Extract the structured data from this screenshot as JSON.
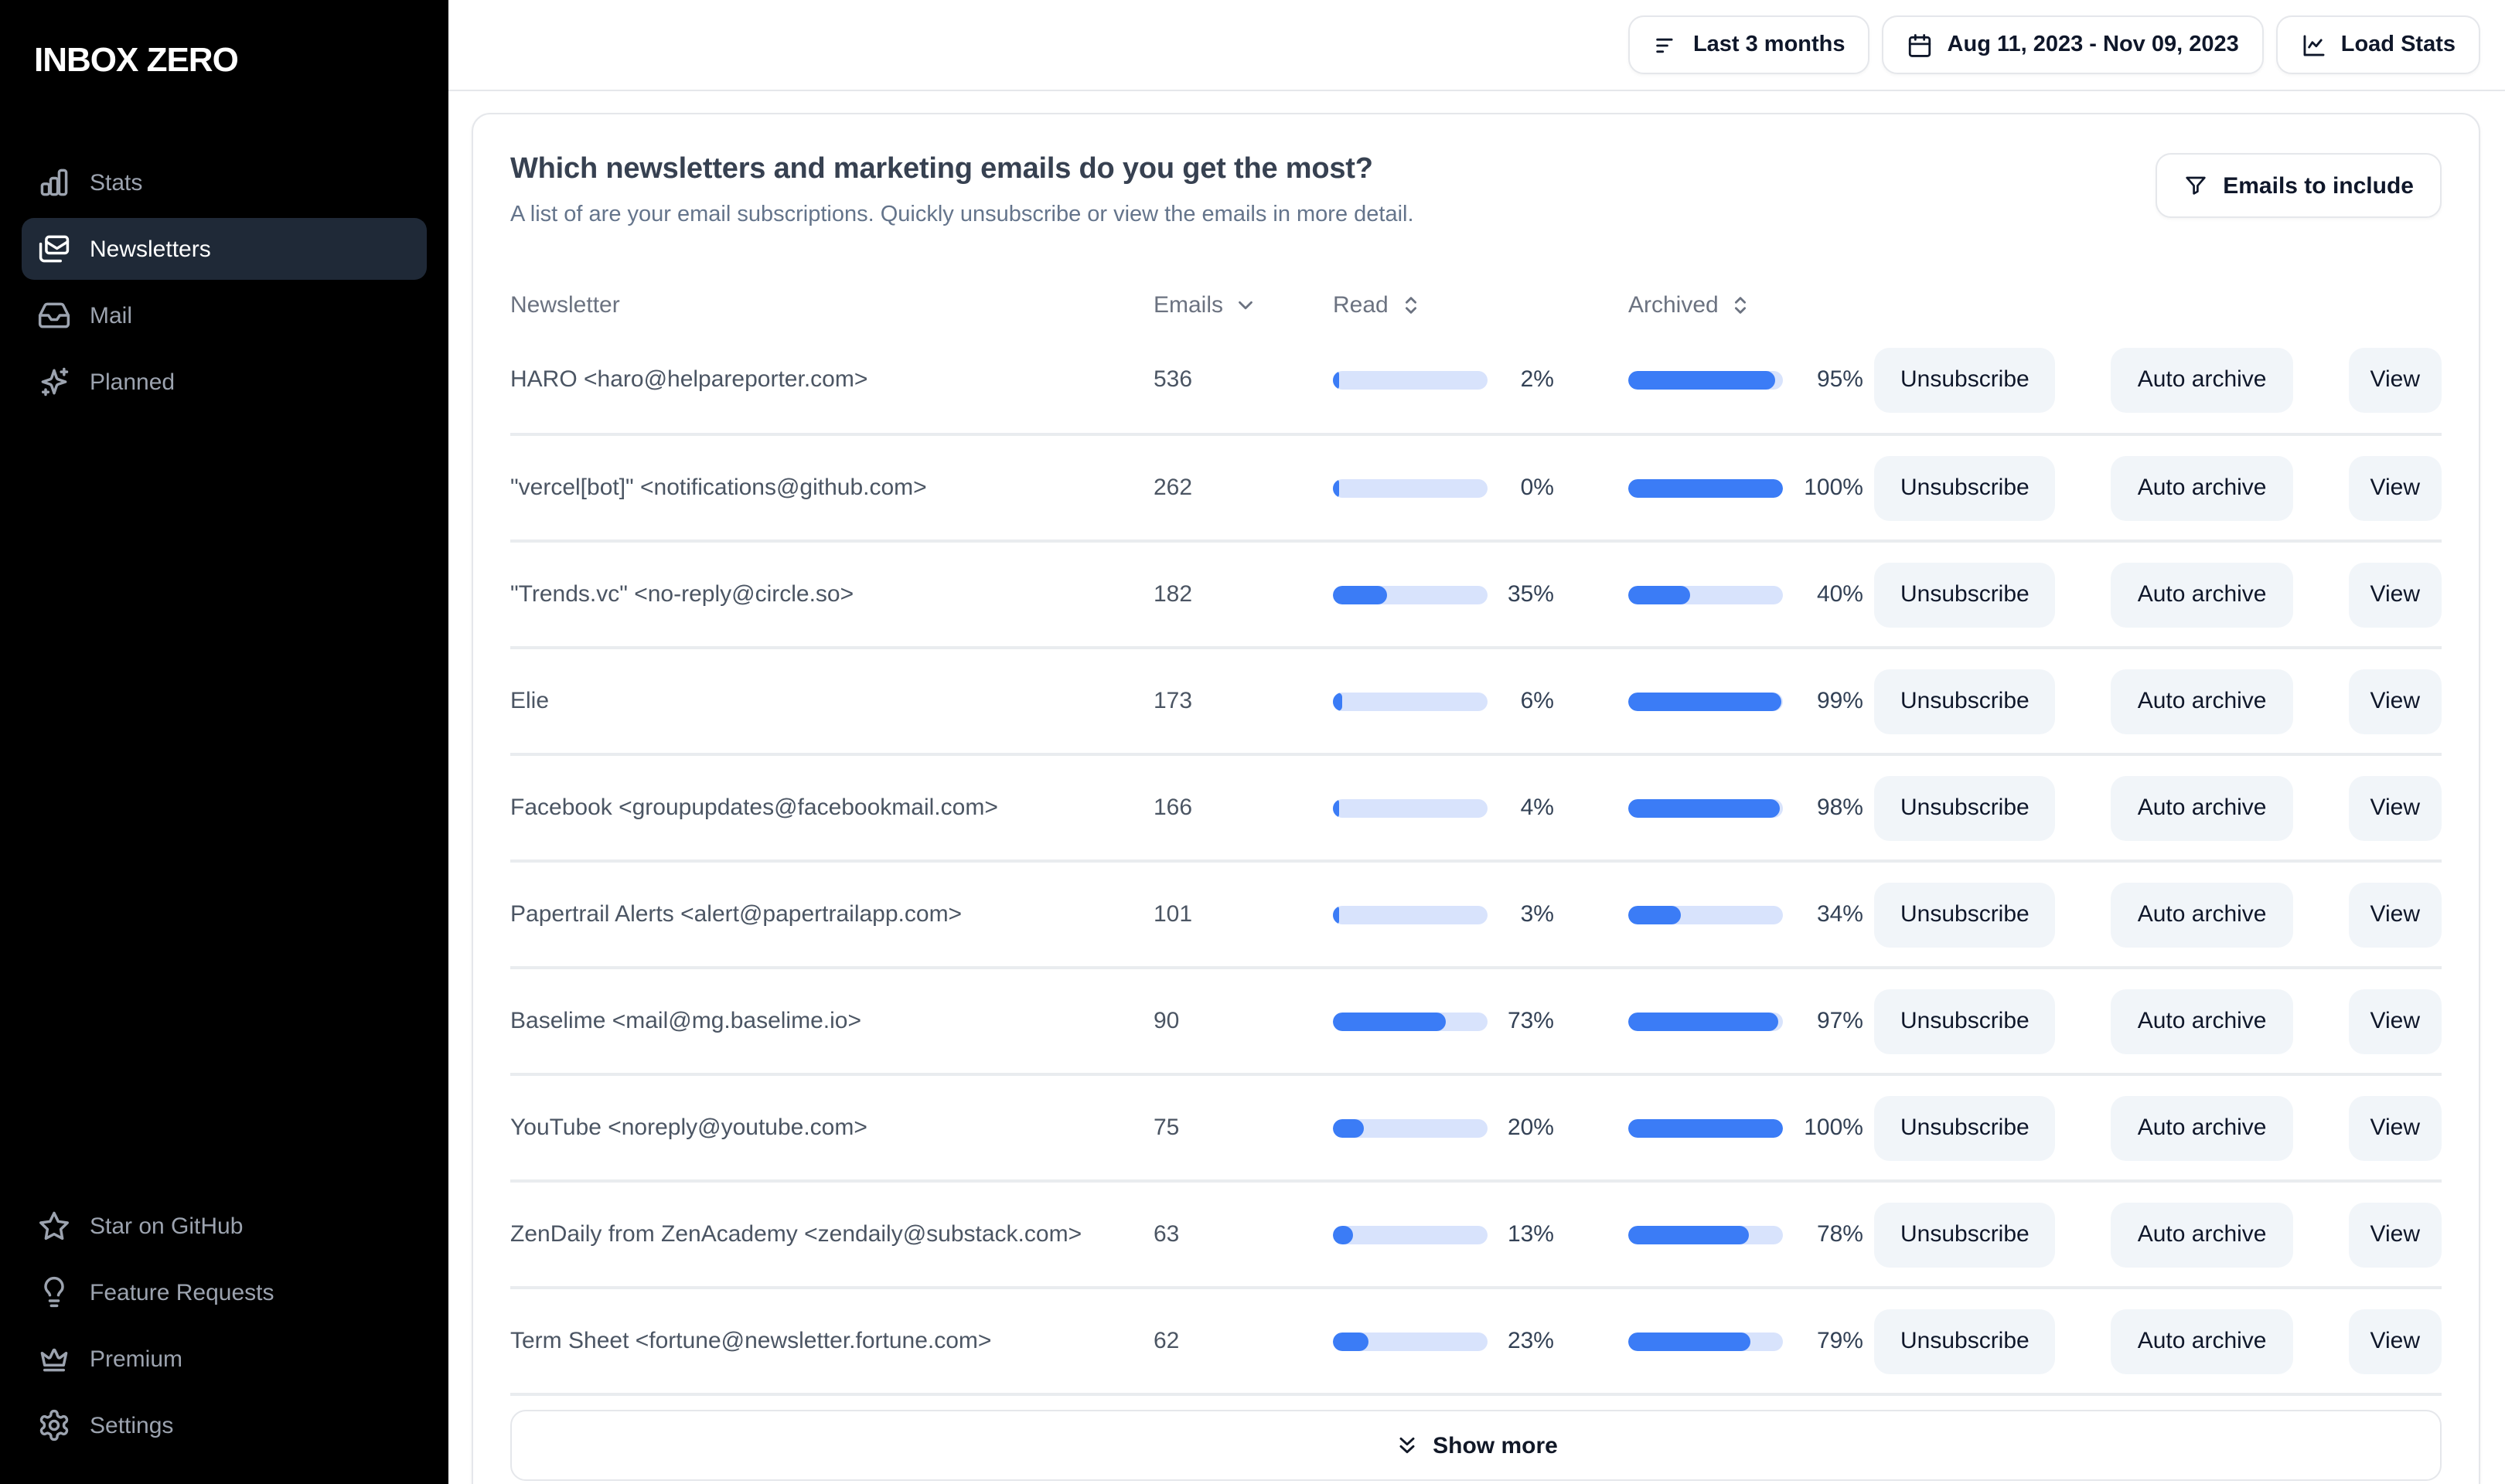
{
  "colors": {
    "accent": "#3b7cf6",
    "bar_track": "#d8e3fc",
    "sidebar_bg": "#000000",
    "active_item_bg": "#1f2937",
    "border": "#e5e7eb"
  },
  "sidebar": {
    "logo": "INBOX ZERO",
    "nav": [
      {
        "label": "Stats",
        "icon": "bar-chart-icon",
        "active": false
      },
      {
        "label": "Newsletters",
        "icon": "mails-icon",
        "active": true
      },
      {
        "label": "Mail",
        "icon": "inbox-icon",
        "active": false
      },
      {
        "label": "Planned",
        "icon": "sparkles-icon",
        "active": false
      }
    ],
    "footer_nav": [
      {
        "label": "Star on GitHub",
        "icon": "star-icon"
      },
      {
        "label": "Feature Requests",
        "icon": "lightbulb-icon"
      },
      {
        "label": "Premium",
        "icon": "crown-icon"
      },
      {
        "label": "Settings",
        "icon": "gear-icon"
      }
    ]
  },
  "topbar": {
    "range_button": "Last 3 months",
    "date_range": "Aug 11, 2023 - Nov 09, 2023",
    "load_stats": "Load Stats"
  },
  "panel": {
    "title": "Which newsletters and marketing emails do you get the most?",
    "subtitle": "A list of are your email subscriptions. Quickly unsubscribe or view the emails in more detail.",
    "filter_button": "Emails to include",
    "show_more": "Show more"
  },
  "table": {
    "columns": {
      "newsletter": "Newsletter",
      "emails": "Emails",
      "read": "Read",
      "archived": "Archived"
    },
    "actions": {
      "unsubscribe": "Unsubscribe",
      "auto_archive": "Auto archive",
      "view": "View"
    },
    "rows": [
      {
        "name": "HARO <haro@helpareporter.com>",
        "emails": 536,
        "read": 2,
        "archived": 95
      },
      {
        "name": "\"vercel[bot]\" <notifications@github.com>",
        "emails": 262,
        "read": 0,
        "archived": 100
      },
      {
        "name": "\"Trends.vc\" <no-reply@circle.so>",
        "emails": 182,
        "read": 35,
        "archived": 40
      },
      {
        "name": "Elie",
        "emails": 173,
        "read": 6,
        "archived": 99
      },
      {
        "name": "Facebook <groupupdates@facebookmail.com>",
        "emails": 166,
        "read": 4,
        "archived": 98
      },
      {
        "name": "Papertrail Alerts <alert@papertrailapp.com>",
        "emails": 101,
        "read": 3,
        "archived": 34
      },
      {
        "name": "Baselime <mail@mg.baselime.io>",
        "emails": 90,
        "read": 73,
        "archived": 97
      },
      {
        "name": "YouTube <noreply@youtube.com>",
        "emails": 75,
        "read": 20,
        "archived": 100
      },
      {
        "name": "ZenDaily from ZenAcademy <zendaily@substack.com>",
        "emails": 63,
        "read": 13,
        "archived": 78
      },
      {
        "name": "Term Sheet <fortune@newsletter.fortune.com>",
        "emails": 62,
        "read": 23,
        "archived": 79
      }
    ]
  }
}
